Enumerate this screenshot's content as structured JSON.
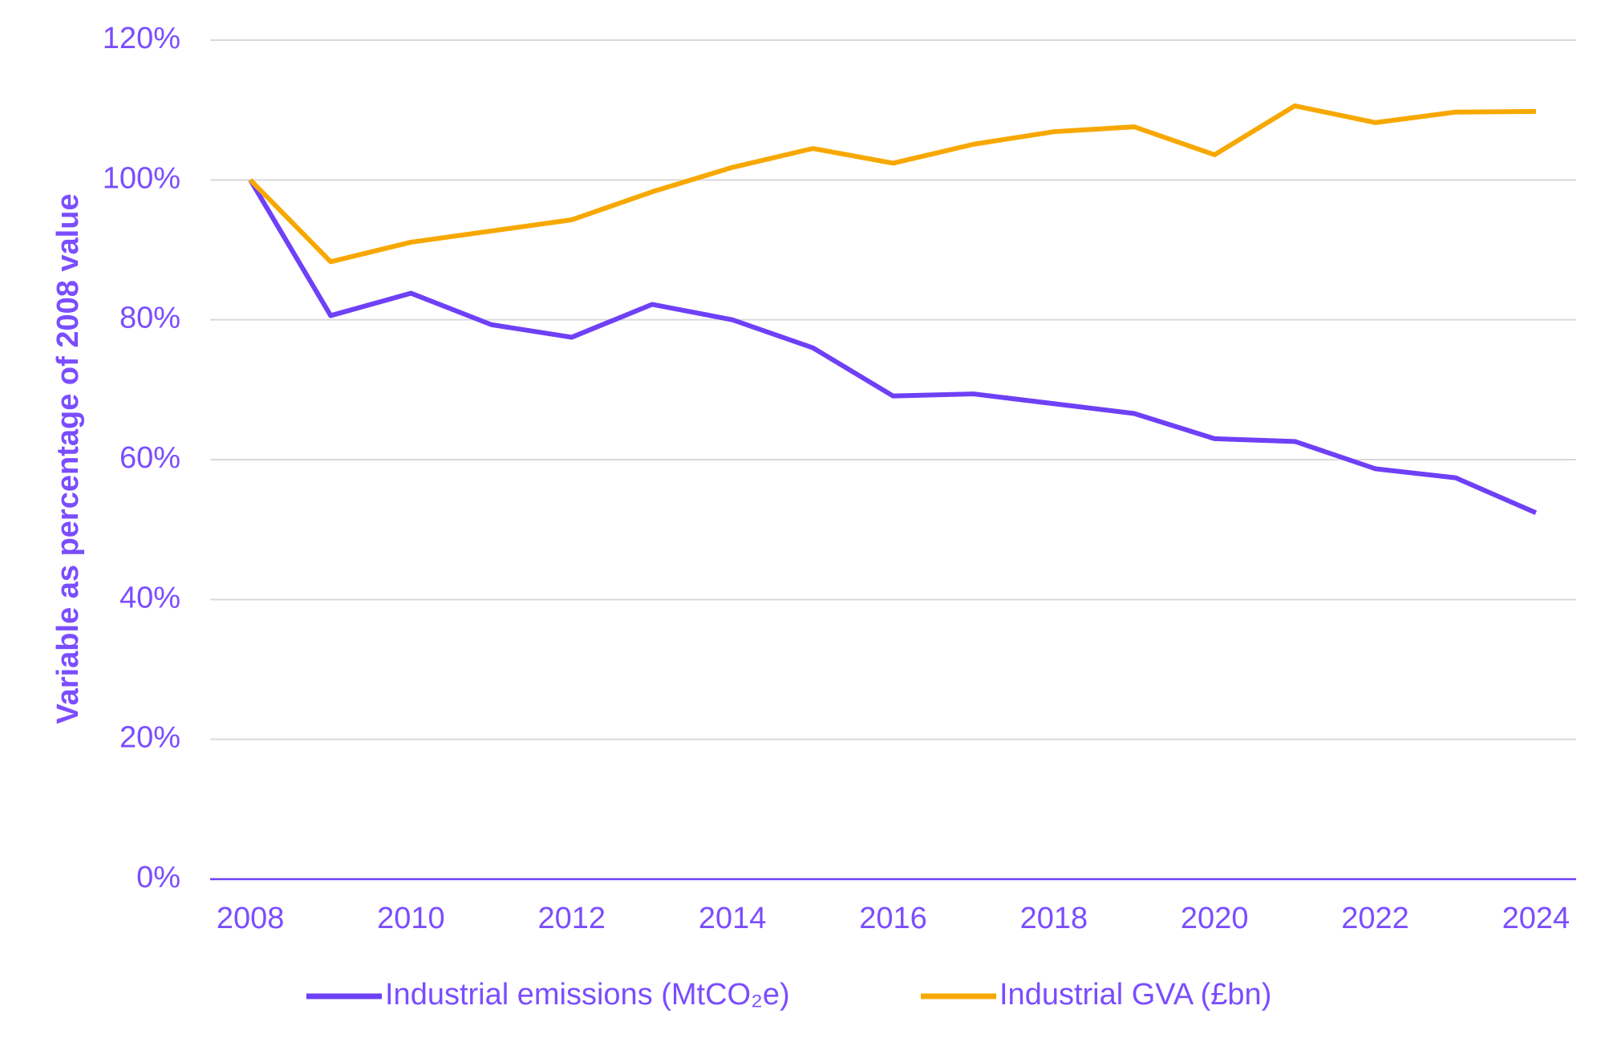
{
  "chart_data": {
    "type": "line",
    "y_label": "Variable as percentage of 2008 value",
    "x": [
      2008,
      2009,
      2010,
      2011,
      2012,
      2013,
      2014,
      2015,
      2016,
      2017,
      2018,
      2019,
      2020,
      2021,
      2022,
      2023,
      2024
    ],
    "series": [
      {
        "name": "Industrial emissions (MtCO₂e)",
        "color": "#6e40f6",
        "values": [
          100,
          80.6,
          83.8,
          79.3,
          77.5,
          82.2,
          80.0,
          76.0,
          69.1,
          69.4,
          68.0,
          66.6,
          63.0,
          62.6,
          58.7,
          57.4,
          52.4
        ]
      },
      {
        "name": "Industrial GVA (£bn)",
        "color": "#f7a800",
        "values": [
          100,
          88.3,
          91.1,
          92.7,
          94.3,
          98.3,
          101.8,
          104.5,
          102.4,
          105.1,
          106.9,
          107.6,
          103.6,
          110.6,
          108.2,
          109.7,
          109.8
        ]
      }
    ],
    "xlim": [
      2007.5,
      2024.5
    ],
    "xticks": [
      2008,
      2010,
      2012,
      2014,
      2016,
      2018,
      2020,
      2022,
      2024
    ],
    "ylim": [
      0,
      120
    ],
    "yticks": [
      {
        "value": 0,
        "label": "0%"
      },
      {
        "value": 20,
        "label": "20%"
      },
      {
        "value": 40,
        "label": "40%"
      },
      {
        "value": 60,
        "label": "60%"
      },
      {
        "value": 80,
        "label": "80%"
      },
      {
        "value": 100,
        "label": "100%"
      },
      {
        "value": 120,
        "label": "120%"
      }
    ],
    "grid": true,
    "legend": "bottom"
  }
}
